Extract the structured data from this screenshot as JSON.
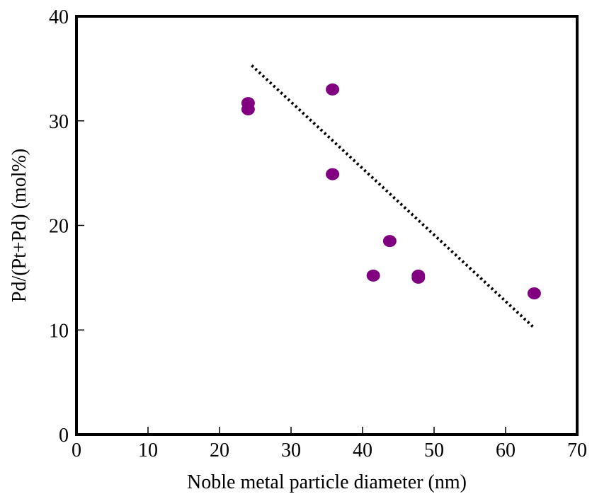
{
  "chart_data": {
    "type": "scatter",
    "title": "",
    "xlabel": "Noble metal particle diameter (nm)",
    "ylabel": "Pd/(Pt+Pd) (mol%)",
    "xlim": [
      0,
      70
    ],
    "ylim": [
      0,
      40
    ],
    "x_ticks": [
      0,
      10,
      20,
      30,
      40,
      50,
      60,
      70
    ],
    "y_ticks": [
      0,
      10,
      20,
      30,
      40
    ],
    "grid": false,
    "legend": "none",
    "colors": {
      "points": "#800080",
      "trend": "#000000",
      "axes": "#000000"
    },
    "series": [
      {
        "type": "scatter",
        "points": [
          {
            "x": 24,
            "y": 31.7
          },
          {
            "x": 24,
            "y": 31.1
          },
          {
            "x": 35.8,
            "y": 33.0
          },
          {
            "x": 35.8,
            "y": 24.9
          },
          {
            "x": 43.8,
            "y": 18.5
          },
          {
            "x": 41.5,
            "y": 15.2
          },
          {
            "x": 47.8,
            "y": 15.2
          },
          {
            "x": 47.8,
            "y": 15.0
          },
          {
            "x": 64,
            "y": 13.5
          }
        ]
      },
      {
        "type": "line",
        "style": "dotted",
        "points": [
          {
            "x": 24.5,
            "y": 35.3
          },
          {
            "x": 64,
            "y": 10.2
          }
        ]
      }
    ]
  }
}
